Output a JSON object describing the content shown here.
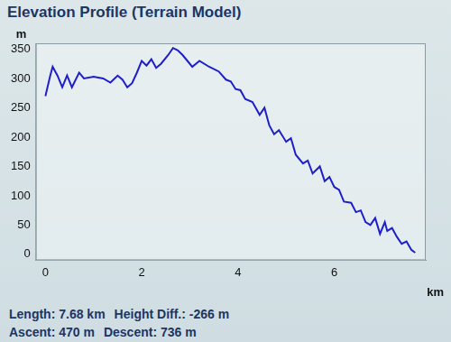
{
  "chart_data": {
    "type": "line",
    "title": "Elevation Profile (Terrain Model)",
    "x_label": "km",
    "y_label": "m",
    "x": [
      0,
      0.1,
      0.15,
      0.25,
      0.35,
      0.45,
      0.55,
      0.7,
      0.8,
      1.0,
      1.2,
      1.35,
      1.5,
      1.6,
      1.7,
      1.8,
      1.9,
      2.0,
      2.1,
      2.2,
      2.3,
      2.4,
      2.55,
      2.65,
      2.75,
      2.85,
      2.95,
      3.05,
      3.2,
      3.4,
      3.6,
      3.75,
      3.85,
      3.95,
      4.05,
      4.15,
      4.3,
      4.45,
      4.55,
      4.65,
      4.75,
      4.85,
      5.0,
      5.1,
      5.2,
      5.35,
      5.45,
      5.55,
      5.7,
      5.8,
      5.9,
      6.0,
      6.1,
      6.2,
      6.35,
      6.45,
      6.55,
      6.65,
      6.75,
      6.85,
      6.95,
      7.05,
      7.1,
      7.2,
      7.3,
      7.4,
      7.5,
      7.6,
      7.68
    ],
    "values": [
      270,
      305,
      320,
      305,
      285,
      305,
      285,
      310,
      300,
      303,
      300,
      293,
      305,
      298,
      285,
      292,
      310,
      330,
      322,
      333,
      318,
      325,
      340,
      352,
      348,
      340,
      330,
      320,
      330,
      320,
      312,
      298,
      295,
      282,
      280,
      265,
      260,
      238,
      250,
      220,
      205,
      212,
      192,
      198,
      170,
      155,
      160,
      138,
      150,
      125,
      132,
      115,
      110,
      90,
      88,
      72,
      75,
      55,
      50,
      62,
      35,
      55,
      40,
      45,
      30,
      18,
      22,
      8,
      3
    ],
    "color": "#1f1fc8",
    "xlim": [
      -0.2,
      7.9
    ],
    "xticks": [
      0,
      2,
      4,
      6
    ],
    "ylim": [
      -10,
      360
    ],
    "yticks": [
      0,
      50,
      100,
      150,
      200,
      250,
      300,
      350
    ],
    "grid": false,
    "annotations": [
      [
        "Length: 7.68 km",
        "Height Diff.: -266 m"
      ],
      [
        "Ascent: 470 m",
        "Descent: 736 m"
      ]
    ]
  }
}
